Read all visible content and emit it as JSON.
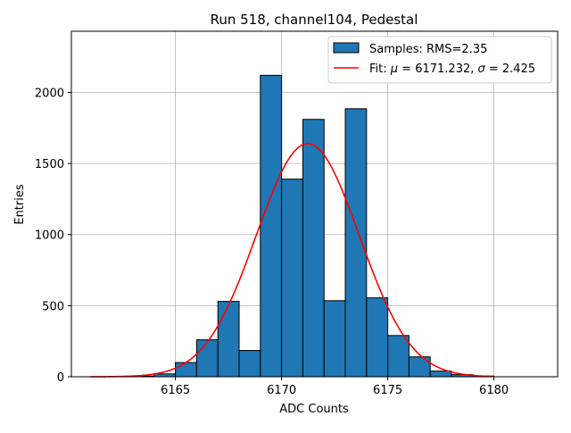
{
  "chart_data": {
    "type": "bar",
    "title": "Run 518, channel104, Pedestal",
    "xlabel": "ADC Counts",
    "ylabel": "Entries",
    "xlim": [
      6160.1,
      6183.0
    ],
    "ylim": [
      0,
      2430
    ],
    "grid": true,
    "x_ticks": [
      6165,
      6170,
      6175,
      6180
    ],
    "y_ticks": [
      0,
      500,
      1000,
      1500,
      2000
    ],
    "bin_width": 1,
    "bins": [
      {
        "left": 6163,
        "count": 5
      },
      {
        "left": 6164,
        "count": 20
      },
      {
        "left": 6165,
        "count": 100
      },
      {
        "left": 6166,
        "count": 260
      },
      {
        "left": 6167,
        "count": 530
      },
      {
        "left": 6168,
        "count": 185
      },
      {
        "left": 6169,
        "count": 2120
      },
      {
        "left": 6170,
        "count": 1390
      },
      {
        "left": 6171,
        "count": 1810
      },
      {
        "left": 6172,
        "count": 535
      },
      {
        "left": 6173,
        "count": 1885
      },
      {
        "left": 6174,
        "count": 555
      },
      {
        "left": 6175,
        "count": 290
      },
      {
        "left": 6176,
        "count": 140
      },
      {
        "left": 6177,
        "count": 40
      },
      {
        "left": 6178,
        "count": 15
      },
      {
        "left": 6179,
        "count": 5
      }
    ],
    "fit": {
      "mu": 6171.232,
      "sigma": 2.425,
      "amplitude": 1640,
      "x_range": [
        6161,
        6180
      ]
    },
    "series": [
      {
        "name": "Samples: RMS=2.35",
        "kind": "histogram",
        "color": "#1f77b4"
      },
      {
        "name": "Fit: μ = 6171.232, σ = 2.425",
        "kind": "line",
        "color": "#ff0000"
      }
    ],
    "legend": {
      "position": "top-right",
      "entries": [
        "Samples: RMS=2.35",
        "Fit: ",
        "μ",
        " = 6171.232, ",
        "σ",
        " = 2.425"
      ]
    }
  }
}
